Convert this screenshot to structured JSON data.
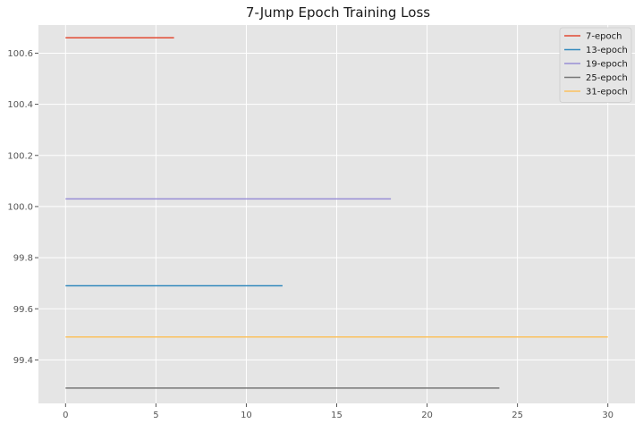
{
  "chart_data": {
    "type": "line",
    "title": "7-Jump Epoch Training Loss",
    "xlabel": "",
    "ylabel": "",
    "xlim": [
      -1.5,
      31.5
    ],
    "ylim": [
      99.23,
      100.71
    ],
    "xticks": [
      0,
      5,
      10,
      15,
      20,
      25,
      30
    ],
    "yticks": [
      99.4,
      99.6,
      99.8,
      100.0,
      100.2,
      100.4,
      100.6
    ],
    "grid": true,
    "legend_position": "top-right",
    "series": [
      {
        "name": "7-epoch",
        "color": "#e24a33",
        "x": [
          0,
          6
        ],
        "y": [
          100.66,
          100.66
        ]
      },
      {
        "name": "13-epoch",
        "color": "#348abd",
        "x": [
          0,
          12
        ],
        "y": [
          99.69,
          99.69
        ]
      },
      {
        "name": "19-epoch",
        "color": "#988ed5",
        "x": [
          0,
          18
        ],
        "y": [
          100.03,
          100.03
        ]
      },
      {
        "name": "25-epoch",
        "color": "#777777",
        "x": [
          0,
          24
        ],
        "y": [
          99.29,
          99.29
        ]
      },
      {
        "name": "31-epoch",
        "color": "#fbc15e",
        "x": [
          0,
          30
        ],
        "y": [
          99.49,
          99.49
        ]
      }
    ]
  }
}
